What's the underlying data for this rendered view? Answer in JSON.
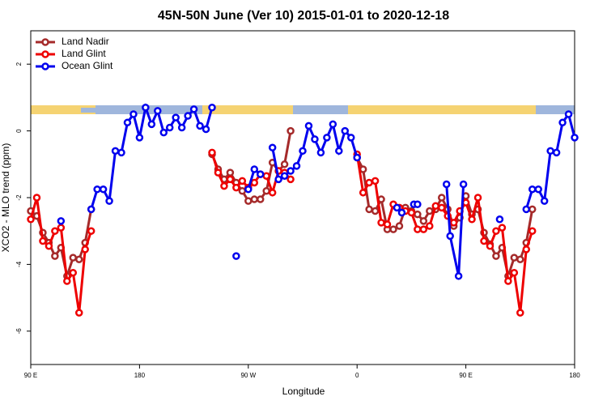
{
  "chart_data": {
    "type": "line",
    "title": "45N-50N June (Ver 10)   2015-01-01 to 2020-12-18",
    "x_label": "Longitude",
    "y_label": "XCO2 - MLO trend (ppm)",
    "xlim": [
      90,
      540
    ],
    "ylim": [
      -7,
      3
    ],
    "xticks": [
      {
        "value": 90,
        "label": "90 E"
      },
      180,
      {
        "value": 270,
        "label": "90 W"
      },
      {
        "value": 360,
        "label": "0"
      },
      {
        "value": 450,
        "label": "90 E"
      },
      {
        "value": 540,
        "label": "180"
      }
    ],
    "yticks": [
      2,
      0,
      -2,
      -4,
      -6
    ],
    "legend": "top-left",
    "series": [
      {
        "name": "Land Nadir",
        "color": "#a52a2a",
        "x": [
          90,
          95,
          100,
          105,
          110,
          115,
          120,
          125,
          130,
          135,
          140,
          190,
          240,
          245,
          250,
          255,
          260,
          265,
          270,
          275,
          280,
          285,
          290,
          295,
          300,
          305,
          330,
          360,
          365,
          370,
          375,
          380,
          385,
          390,
          395,
          400,
          405,
          410,
          415,
          420,
          425,
          430,
          435,
          440,
          445,
          450,
          455,
          460,
          465,
          470,
          475,
          480,
          485,
          490,
          495,
          500,
          505
        ],
        "values": [
          -2.4,
          -2.55,
          -3.05,
          -3.35,
          -3.75,
          -3.5,
          -4.35,
          -3.8,
          -3.85,
          -3.35,
          -2.35,
          null,
          -0.7,
          -1.15,
          -1.45,
          -1.25,
          -1.55,
          -1.8,
          -2.1,
          -2.05,
          -2.05,
          -1.8,
          -0.95,
          -1.2,
          -1.0,
          0.0,
          null,
          -0.8,
          -1.15,
          -2.35,
          -2.4,
          -2.05,
          -2.95,
          -2.95,
          -2.85,
          -2.3,
          -2.4,
          -2.5,
          -2.7,
          -2.4,
          -2.35,
          -2.0,
          -2.35,
          -2.85,
          -2.6,
          -1.95,
          -2.5,
          -2.35,
          -3.05,
          -3.4,
          -3.75,
          -3.5,
          -4.35,
          -3.8,
          -3.85,
          -3.35,
          -2.35
        ]
      },
      {
        "name": "Land Glint",
        "color": "#ee0000",
        "x": [
          90,
          95,
          100,
          105,
          110,
          115,
          120,
          125,
          130,
          135,
          140,
          190,
          240,
          245,
          250,
          255,
          260,
          265,
          270,
          275,
          280,
          285,
          290,
          295,
          300,
          305,
          330,
          360,
          365,
          370,
          375,
          380,
          385,
          390,
          395,
          400,
          405,
          410,
          415,
          420,
          425,
          430,
          435,
          440,
          445,
          450,
          455,
          460,
          465,
          470,
          475,
          480,
          485,
          490,
          495,
          500,
          505
        ],
        "values": [
          -2.65,
          -2.0,
          -3.3,
          -3.45,
          -3.0,
          -2.9,
          -4.5,
          -4.25,
          -5.45,
          -3.55,
          -3.0,
          null,
          -0.65,
          -1.25,
          -1.65,
          -1.45,
          -1.7,
          -1.5,
          -1.7,
          -1.55,
          -1.3,
          -1.35,
          -1.85,
          -1.2,
          -1.25,
          -1.45,
          null,
          -0.7,
          -1.85,
          -1.55,
          -1.5,
          -2.75,
          -2.8,
          -2.2,
          -2.3,
          -2.4,
          -2.45,
          -2.95,
          -2.95,
          -2.85,
          -2.25,
          -2.3,
          -2.55,
          -2.75,
          -2.4,
          -2.15,
          -2.65,
          -2.0,
          -3.3,
          -3.45,
          -3.0,
          -2.9,
          -4.5,
          -4.25,
          -5.45,
          -3.55,
          -3.0
        ]
      },
      {
        "name": "Ocean Glint",
        "color": "#0000ee",
        "x": [
          115,
          128,
          140,
          145,
          150,
          155,
          160,
          165,
          170,
          175,
          180,
          185,
          190,
          195,
          200,
          205,
          210,
          215,
          220,
          225,
          230,
          235,
          240,
          252,
          260,
          267,
          270,
          275,
          280,
          285,
          290,
          295,
          300,
          305,
          310,
          315,
          320,
          325,
          330,
          335,
          340,
          345,
          350,
          355,
          360,
          377,
          393,
          397,
          402,
          407,
          410,
          422,
          434,
          437,
          444,
          448,
          463,
          478,
          489,
          500,
          505,
          510,
          515,
          520,
          525,
          530,
          535,
          540
        ],
        "values": [
          -2.7,
          null,
          -2.35,
          -1.75,
          -1.75,
          -2.1,
          -0.6,
          -0.65,
          0.25,
          0.5,
          -0.2,
          0.7,
          0.2,
          0.6,
          -0.05,
          0.1,
          0.4,
          0.1,
          0.45,
          0.65,
          0.15,
          0.05,
          0.7,
          null,
          -3.75,
          null,
          -1.75,
          -1.15,
          -1.3,
          null,
          -0.5,
          -1.45,
          -1.35,
          -1.2,
          -1.05,
          -0.6,
          0.15,
          -0.25,
          -0.65,
          -0.2,
          0.2,
          -0.6,
          0.0,
          -0.2,
          -0.8,
          null,
          -2.3,
          -2.45,
          null,
          -2.2,
          -2.2,
          null,
          -1.6,
          -3.15,
          -4.35,
          -1.6,
          null,
          -2.65,
          null,
          -2.35,
          -1.75,
          -1.75,
          -2.1,
          -0.6,
          -0.65,
          0.25,
          0.5,
          -0.2
        ]
      }
    ]
  }
}
